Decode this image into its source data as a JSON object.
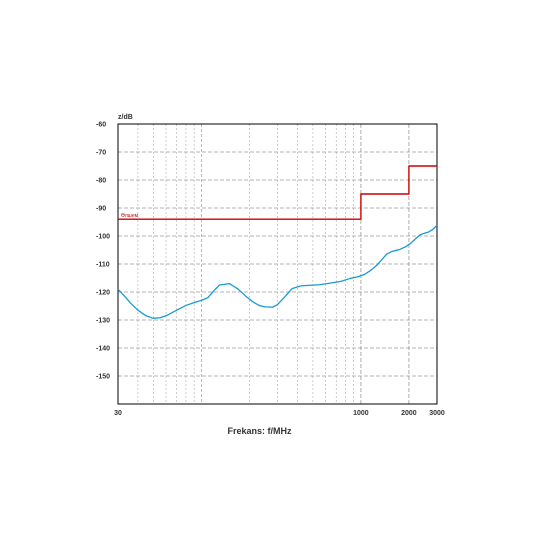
{
  "chart_data": {
    "type": "line",
    "title": "",
    "ylabel": "z/dB",
    "xlabel": "Frekans: f/MHz",
    "x_scale": "log",
    "xlim": [
      30,
      3000
    ],
    "ylim": [
      -160,
      -60
    ],
    "x_ticks": [
      30,
      1000,
      2000,
      3000
    ],
    "y_ticks": [
      -60,
      -70,
      -80,
      -90,
      -100,
      -110,
      -120,
      -130,
      -140,
      -150
    ],
    "grid": true,
    "limit_label": "Өлшем",
    "colors": {
      "limit": "#cc0000",
      "trace": "#1a9ad6",
      "grid": "#9a9a9a",
      "axis": "#000000"
    },
    "series": [
      {
        "name": "",
        "role": "limit",
        "x": [
          30,
          1000,
          1000,
          2000,
          2000,
          3000
        ],
        "y": [
          -94,
          -94,
          -85,
          -85,
          -75,
          -75
        ]
      },
      {
        "name": "",
        "role": "measurement",
        "x": [
          30,
          33,
          36,
          40,
          45,
          50,
          55,
          60,
          70,
          80,
          90,
          100,
          110,
          120,
          130,
          150,
          170,
          190,
          210,
          230,
          250,
          280,
          300,
          330,
          370,
          420,
          480,
          550,
          650,
          750,
          850,
          950,
          1050,
          1150,
          1250,
          1350,
          1450,
          1550,
          1650,
          1750,
          1900,
          2050,
          2200,
          2350,
          2500,
          2650,
          2800,
          3000
        ],
        "y": [
          -119,
          -121.5,
          -124,
          -126.5,
          -128.5,
          -129.4,
          -129.2,
          -128.5,
          -126.5,
          -124.8,
          -123.8,
          -123,
          -122,
          -119.5,
          -117.5,
          -117,
          -119,
          -121.5,
          -123.5,
          -124.8,
          -125.3,
          -125.4,
          -124.5,
          -122,
          -118.8,
          -117.8,
          -117.6,
          -117.4,
          -116.8,
          -116.2,
          -115.2,
          -114.6,
          -113.8,
          -112.3,
          -110.6,
          -108.5,
          -106.5,
          -105.6,
          -105.2,
          -104.8,
          -103.9,
          -102.6,
          -101,
          -99.6,
          -99,
          -98.6,
          -97.8,
          -96.2
        ]
      }
    ]
  }
}
